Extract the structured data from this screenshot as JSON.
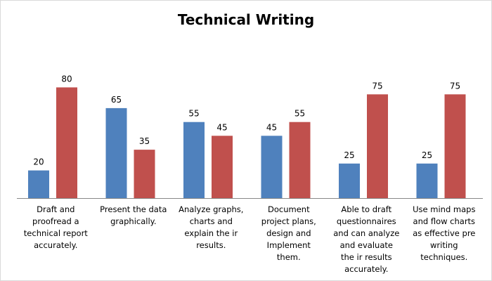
{
  "chart_data": {
    "type": "bar",
    "title": "Technical Writing",
    "xlabel": "",
    "ylabel": "",
    "ylim": [
      0,
      100
    ],
    "grid": false,
    "legend": "none",
    "categories": [
      "Draft and proofread a technical report accurately.",
      "Present the data graphically.",
      "Analyze graphs, charts and explain their results.",
      "Document project plans, design and Implement them.",
      "Able to draft questionnaires and can analyze and evaluate their results accurately.",
      "Use mind maps and flow charts as effective pre writing techniques."
    ],
    "category_lines": [
      [
        "Draft and",
        "proofread a",
        "technical report",
        "accurately."
      ],
      [
        "Present the data",
        "graphically."
      ],
      [
        "Analyze graphs,",
        "charts and",
        "explain the ir",
        "results."
      ],
      [
        "Document",
        "project plans,",
        "design and",
        "Implement",
        "them."
      ],
      [
        "Able to draft",
        "questionnaires",
        "and can analyze",
        "and evaluate",
        "the ir results",
        "accurately."
      ],
      [
        "Use mind maps",
        "and flow charts",
        "as effective pre",
        "writing",
        "techniques."
      ]
    ],
    "series": [
      {
        "values": [
          20,
          65,
          55,
          45,
          25,
          25
        ],
        "color": "#4f81bd"
      },
      {
        "values": [
          80,
          35,
          45,
          55,
          75,
          75
        ],
        "color": "#c0504d"
      }
    ]
  }
}
